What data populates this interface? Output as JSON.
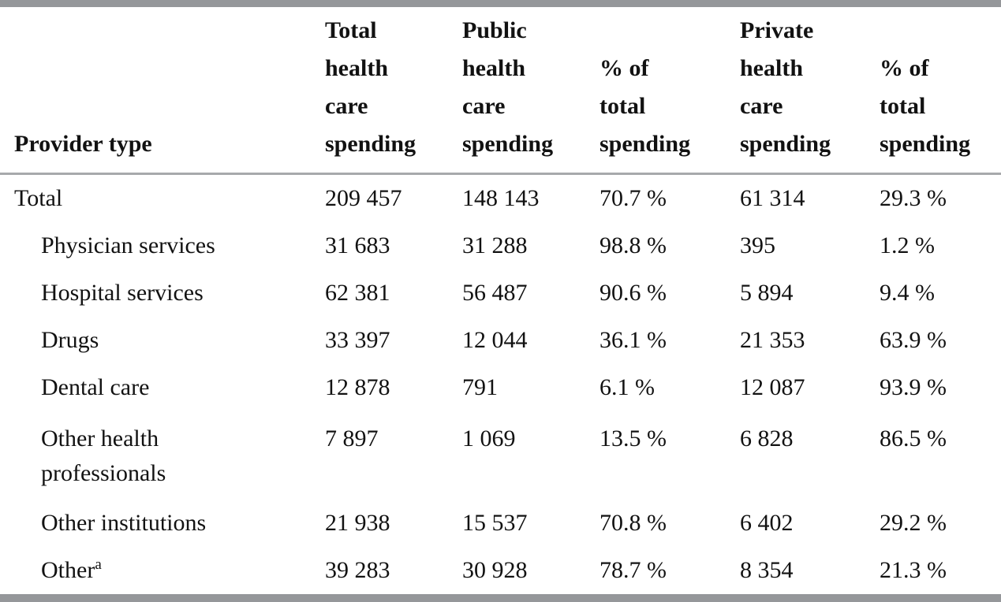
{
  "colors": {
    "bar": "#95979a",
    "header_rule": "#a7a9ac",
    "text": "#121212",
    "background": "#ffffff"
  },
  "table": {
    "header": {
      "provider_type": "Provider type",
      "total_spending": "Total\nhealth\ncare\nspending",
      "public_spending": "Public\nhealth\ncare\nspending",
      "public_pct": "% of\ntotal\nspending",
      "private_spending": "Private\nhealth\ncare\nspending",
      "private_pct": "% of\ntotal\nspending"
    },
    "rows": [
      {
        "label": "Total",
        "total": "209 457",
        "public": "148 143",
        "public_pct": "70.7 %",
        "private": "61 314",
        "private_pct": "29.3 %"
      },
      {
        "label": "Physician services",
        "total": "31 683",
        "public": "31 288",
        "public_pct": "98.8 %",
        "private": "395",
        "private_pct": "1.2 %"
      },
      {
        "label": "Hospital services",
        "total": "62 381",
        "public": "56 487",
        "public_pct": "90.6 %",
        "private": "5 894",
        "private_pct": "9.4 %"
      },
      {
        "label": "Drugs",
        "total": "33 397",
        "public": "12 044",
        "public_pct": "36.1 %",
        "private": "21 353",
        "private_pct": "63.9 %"
      },
      {
        "label": "Dental care",
        "total": "12 878",
        "public": "791",
        "public_pct": "6.1 %",
        "private": "12 087",
        "private_pct": "93.9 %"
      },
      {
        "label": "Other health\nprofessionals",
        "total": "7 897",
        "public": "1 069",
        "public_pct": "13.5 %",
        "private": "6 828",
        "private_pct": "86.5 %"
      },
      {
        "label": "Other institutions",
        "total": "21 938",
        "public": "15 537",
        "public_pct": "70.8 %",
        "private": "6 402",
        "private_pct": "29.2 %"
      },
      {
        "label": "Other",
        "label_superscript": "a",
        "total": "39 283",
        "public": "30 928",
        "public_pct": "78.7 %",
        "private": "8 354",
        "private_pct": "21.3 %"
      }
    ]
  }
}
